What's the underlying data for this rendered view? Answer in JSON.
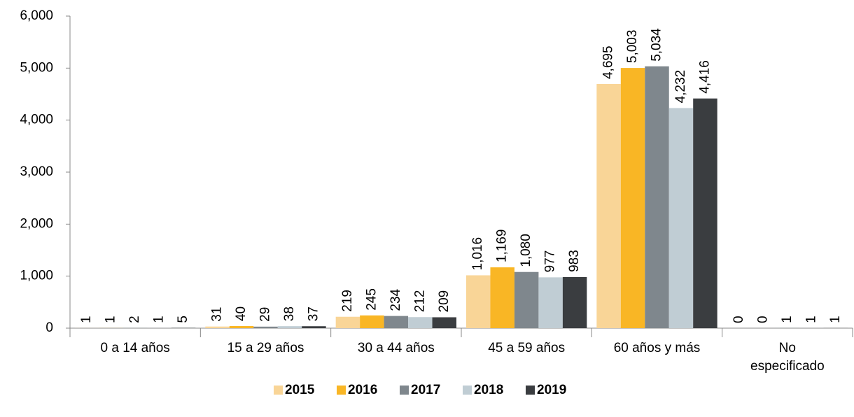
{
  "chart_data": {
    "type": "bar",
    "categories": [
      "0 a 14 años",
      "15 a 29 años",
      "30 a 44 años",
      "45 a 59 años",
      "60 años y más",
      "No\nespecificado"
    ],
    "series": [
      {
        "name": "2015",
        "color": "#f9d597",
        "values": [
          1,
          31,
          219,
          1016,
          4695,
          0
        ],
        "value_labels": [
          "1",
          "31",
          "219",
          "1,016",
          "4,695",
          "0"
        ]
      },
      {
        "name": "2016",
        "color": "#f9b625",
        "values": [
          1,
          40,
          245,
          1169,
          5003,
          0
        ],
        "value_labels": [
          "1",
          "40",
          "245",
          "1,169",
          "5,003",
          "0"
        ]
      },
      {
        "name": "2017",
        "color": "#7f878d",
        "values": [
          2,
          29,
          234,
          1080,
          5034,
          1
        ],
        "value_labels": [
          "2",
          "29",
          "234",
          "1,080",
          "5,034",
          "1"
        ]
      },
      {
        "name": "2018",
        "color": "#c0cdd4",
        "values": [
          1,
          38,
          212,
          977,
          4232,
          1
        ],
        "value_labels": [
          "1",
          "38",
          "212",
          "977",
          "4,232",
          "1"
        ]
      },
      {
        "name": "2019",
        "color": "#3a3d40",
        "values": [
          5,
          37,
          209,
          983,
          4416,
          1
        ],
        "value_labels": [
          "5",
          "37",
          "209",
          "983",
          "4,416",
          "1"
        ]
      }
    ],
    "ylim": [
      0,
      6000
    ],
    "yticks": [
      0,
      {
        "value": 1000,
        "label": "1,000"
      },
      {
        "value": 2000,
        "label": "2,000"
      },
      {
        "value": 3000,
        "label": "3,000"
      },
      {
        "value": 4000,
        "label": "4,000"
      },
      {
        "value": 5000,
        "label": "5,000"
      },
      {
        "value": 6000,
        "label": "6,000"
      }
    ],
    "legend": "bottom"
  }
}
